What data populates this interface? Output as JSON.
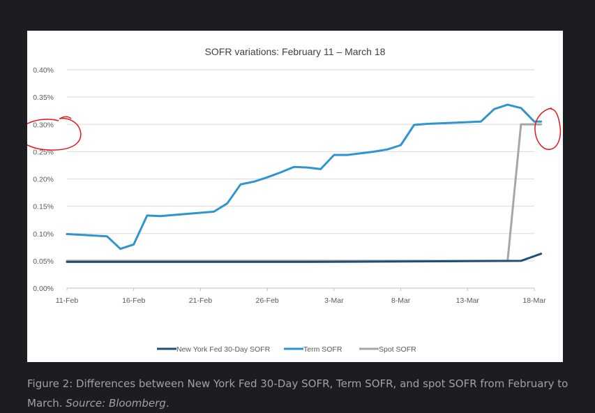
{
  "chart_data": {
    "type": "line",
    "title": "SOFR variations: February 11 – March 18",
    "xlabel": "",
    "ylabel": "",
    "ylim": [
      0,
      0.4
    ],
    "yticks": [
      "0.00%",
      "0.05%",
      "0.10%",
      "0.15%",
      "0.20%",
      "0.25%",
      "0.30%",
      "0.35%",
      "0.40%"
    ],
    "xticks": [
      "11-Feb",
      "16-Feb",
      "21-Feb",
      "26-Feb",
      "3-Mar",
      "8-Mar",
      "13-Mar",
      "18-Mar"
    ],
    "x_range": [
      0,
      35
    ],
    "grid": true,
    "legend_position": "bottom",
    "series": [
      {
        "name": "New York Fed 30-Day SOFR",
        "color": "#1f4e79",
        "points": [
          [
            0,
            0.048
          ],
          [
            18,
            0.048
          ],
          [
            34,
            0.05
          ],
          [
            35.5,
            0.063
          ]
        ]
      },
      {
        "name": "Term SOFR",
        "color": "#2e95cf",
        "points": [
          [
            0,
            0.099
          ],
          [
            3,
            0.095
          ],
          [
            4,
            0.072
          ],
          [
            5,
            0.08
          ],
          [
            6,
            0.133
          ],
          [
            7,
            0.132
          ],
          [
            11,
            0.14
          ],
          [
            12,
            0.155
          ],
          [
            13,
            0.19
          ],
          [
            14,
            0.195
          ],
          [
            15,
            0.203
          ],
          [
            16,
            0.212
          ],
          [
            17,
            0.222
          ],
          [
            18,
            0.221
          ],
          [
            19,
            0.218
          ],
          [
            20,
            0.244
          ],
          [
            21,
            0.244
          ],
          [
            22,
            0.247
          ],
          [
            23,
            0.25
          ],
          [
            24,
            0.254
          ],
          [
            25,
            0.262
          ],
          [
            26,
            0.299
          ],
          [
            27,
            0.301
          ],
          [
            31,
            0.305
          ],
          [
            32,
            0.328
          ],
          [
            33,
            0.336
          ],
          [
            34,
            0.33
          ],
          [
            35,
            0.305
          ],
          [
            35.5,
            0.305
          ]
        ]
      },
      {
        "name": "Spot SOFR",
        "color": "#a6a6a6",
        "points": [
          [
            0,
            0.05
          ],
          [
            33,
            0.05
          ],
          [
            34,
            0.3
          ],
          [
            35.5,
            0.3
          ]
        ]
      }
    ]
  },
  "annotations": {
    "circle_color": "#e8141a"
  },
  "caption": {
    "text": "Figure 2: Differences between New York Fed 30-Day SOFR, Term SOFR, and spot SOFR from February to March.",
    "source_label": "Source: Bloomberg",
    "source_end": "."
  }
}
